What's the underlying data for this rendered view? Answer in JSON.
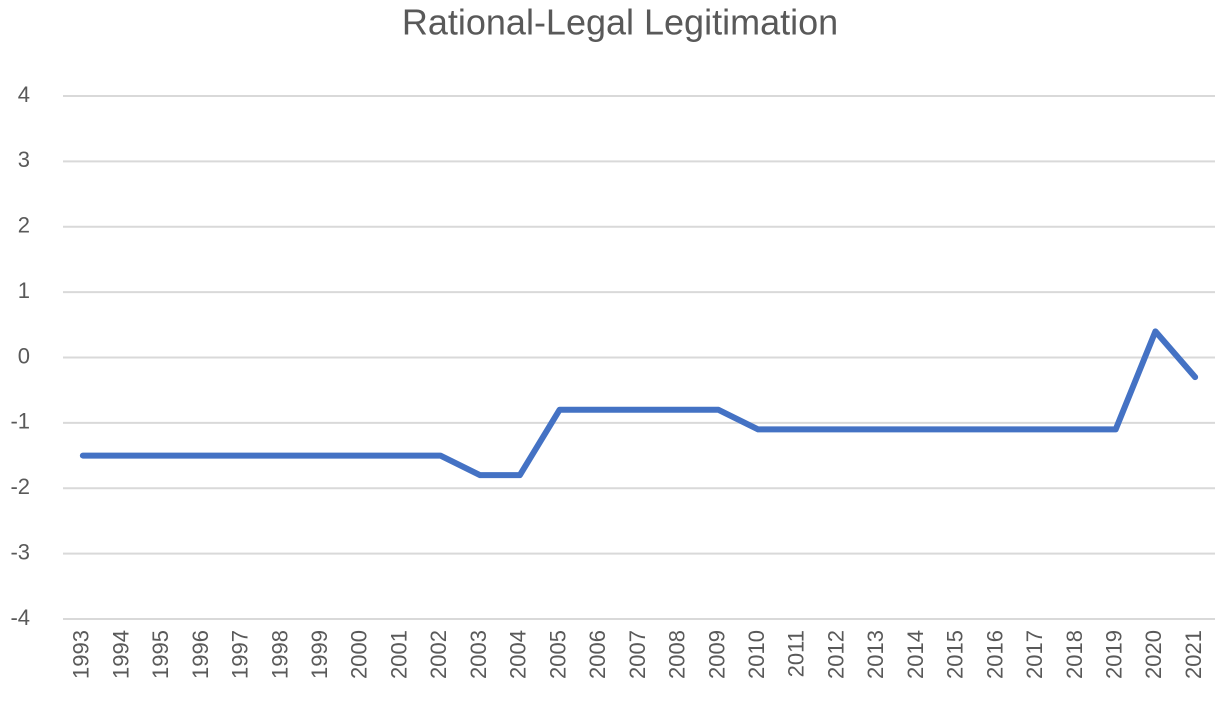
{
  "chart_data": {
    "type": "line",
    "title": "Rational-Legal Legitimation",
    "categories": [
      "1993",
      "1994",
      "1995",
      "1996",
      "1997",
      "1998",
      "1999",
      "2000",
      "2001",
      "2002",
      "2003",
      "2004",
      "2005",
      "2006",
      "2007",
      "2008",
      "2009",
      "2010",
      "2011",
      "2012",
      "2013",
      "2014",
      "2015",
      "2016",
      "2017",
      "2018",
      "2019",
      "2020",
      "2021"
    ],
    "series": [
      {
        "name": "Rational-Legal Legitimation",
        "color": "#4472c4",
        "values": [
          -1.5,
          -1.5,
          -1.5,
          -1.5,
          -1.5,
          -1.5,
          -1.5,
          -1.5,
          -1.5,
          -1.5,
          -1.8,
          -1.8,
          -0.8,
          -0.8,
          -0.8,
          -0.8,
          -0.8,
          -1.1,
          -1.1,
          -1.1,
          -1.1,
          -1.1,
          -1.1,
          -1.1,
          -1.1,
          -1.1,
          -1.1,
          0.4,
          -0.3
        ]
      }
    ],
    "ylim": [
      -4,
      4
    ],
    "yticks": [
      -4,
      -3,
      -2,
      -1,
      0,
      1,
      2,
      3,
      4
    ],
    "grid": true
  }
}
